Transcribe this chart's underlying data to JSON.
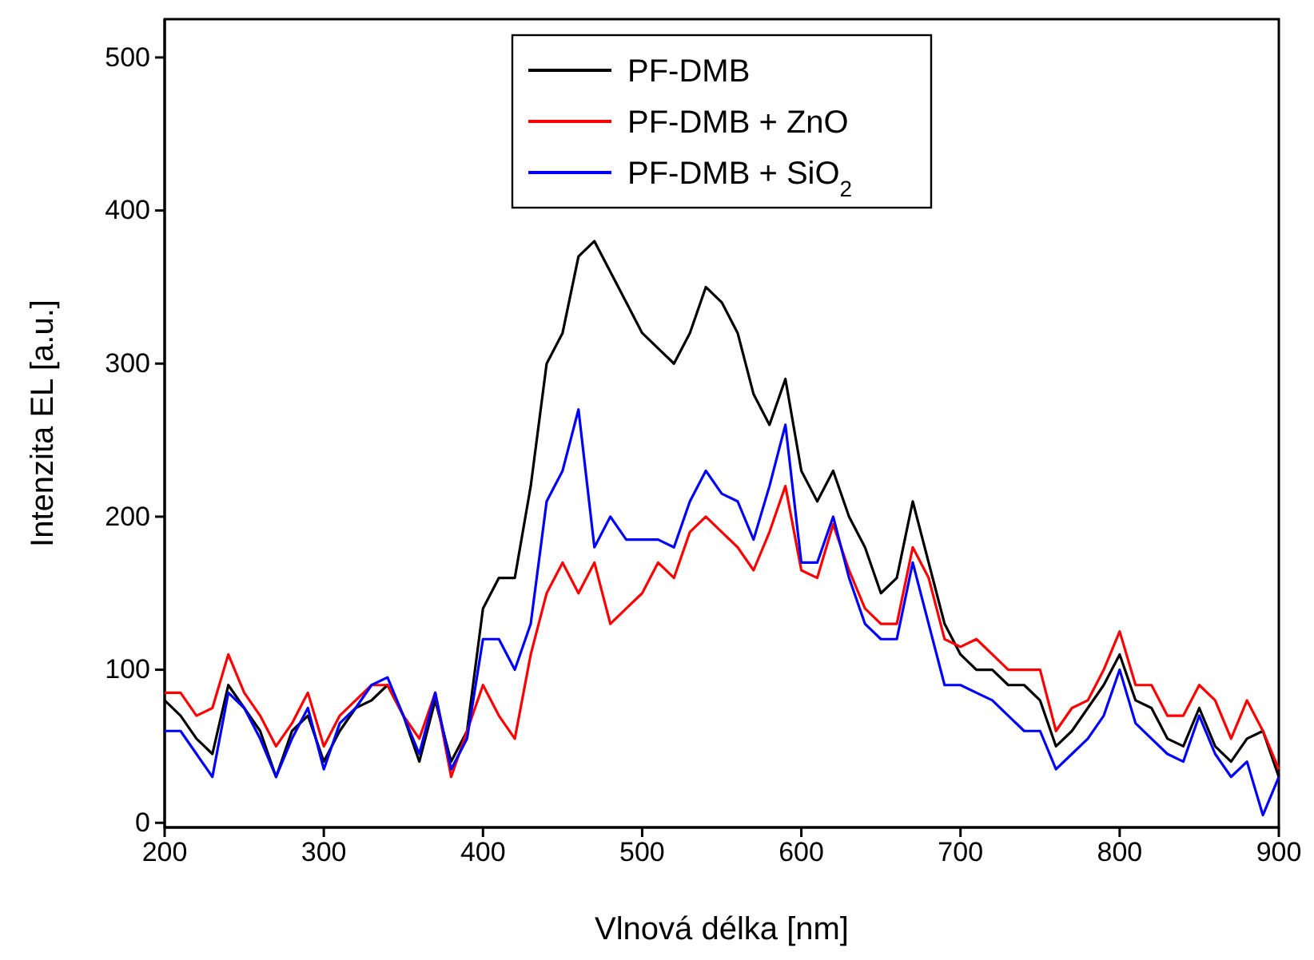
{
  "chart_data": {
    "type": "line",
    "xlabel": "Vlnová délka [nm]",
    "ylabel": "Intenzita EL [a.u.]",
    "xlim": [
      200,
      900
    ],
    "xticks": [
      200,
      300,
      400,
      500,
      600,
      700,
      800,
      900
    ],
    "ylim": [
      -3,
      525
    ],
    "yticks": [
      0,
      100,
      200,
      300,
      400,
      500
    ],
    "x": [
      200,
      210,
      220,
      230,
      240,
      250,
      260,
      270,
      280,
      290,
      300,
      310,
      320,
      330,
      340,
      350,
      360,
      370,
      380,
      390,
      400,
      410,
      420,
      430,
      440,
      450,
      460,
      470,
      480,
      490,
      500,
      510,
      520,
      530,
      540,
      550,
      560,
      570,
      580,
      590,
      600,
      610,
      620,
      630,
      640,
      650,
      660,
      670,
      680,
      690,
      700,
      710,
      720,
      730,
      740,
      750,
      760,
      770,
      780,
      790,
      800,
      810,
      820,
      830,
      840,
      850,
      860,
      870,
      880,
      890,
      900
    ],
    "legend": "top",
    "grid": false,
    "marker": "none",
    "line_style": "solid",
    "series": [
      {
        "name": "PF-DMB",
        "color": "#000000",
        "values": [
          80,
          70,
          55,
          45,
          90,
          75,
          60,
          30,
          60,
          70,
          40,
          60,
          75,
          80,
          90,
          70,
          40,
          80,
          40,
          60,
          140,
          160,
          160,
          220,
          300,
          320,
          370,
          380,
          360,
          340,
          320,
          310,
          300,
          320,
          350,
          340,
          320,
          280,
          260,
          290,
          230,
          210,
          230,
          200,
          180,
          150,
          160,
          210,
          170,
          130,
          110,
          100,
          100,
          90,
          90,
          80,
          50,
          60,
          75,
          90,
          110,
          80,
          75,
          55,
          50,
          75,
          50,
          40,
          55,
          60,
          30
        ]
      },
      {
        "name": "PF-DMB + ZnO",
        "color": "#ff0000",
        "values": [
          85,
          85,
          70,
          75,
          110,
          85,
          70,
          50,
          65,
          85,
          50,
          70,
          80,
          90,
          90,
          70,
          55,
          85,
          30,
          60,
          90,
          70,
          55,
          110,
          150,
          170,
          150,
          170,
          130,
          140,
          150,
          170,
          160,
          190,
          200,
          190,
          180,
          165,
          190,
          220,
          165,
          160,
          195,
          165,
          140,
          130,
          130,
          180,
          160,
          120,
          115,
          120,
          110,
          100,
          100,
          100,
          60,
          75,
          80,
          100,
          125,
          90,
          90,
          70,
          70,
          90,
          80,
          55,
          80,
          60,
          35
        ]
      },
      {
        "name": "PF-DMB + SiO$_{2}$",
        "color": "#0000ff",
        "values": [
          60,
          60,
          45,
          30,
          85,
          75,
          55,
          30,
          55,
          75,
          35,
          65,
          75,
          90,
          95,
          70,
          45,
          85,
          35,
          55,
          120,
          120,
          100,
          130,
          210,
          230,
          270,
          180,
          200,
          185,
          185,
          185,
          180,
          210,
          230,
          215,
          210,
          185,
          220,
          260,
          170,
          170,
          200,
          160,
          130,
          120,
          120,
          170,
          130,
          90,
          90,
          85,
          80,
          70,
          60,
          60,
          35,
          45,
          55,
          70,
          100,
          65,
          55,
          45,
          40,
          70,
          45,
          30,
          40,
          5,
          30
        ]
      }
    ]
  }
}
